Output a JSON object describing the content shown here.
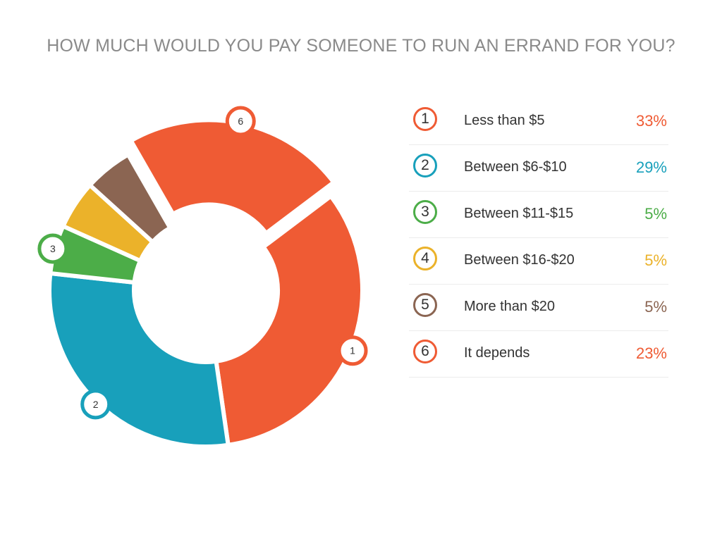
{
  "chart_data": {
    "type": "pie",
    "title": "HOW MUCH WOULD YOU PAY SOMEONE TO RUN AN ERRAND FOR YOU?",
    "categories": [
      "Less than $5",
      "Between $6-$10",
      "Between $11-$15",
      "Between $16-$20",
      "More than $20",
      "It depends"
    ],
    "markers": [
      "1",
      "2",
      "3",
      "4",
      "5",
      "6"
    ],
    "values": [
      33,
      29,
      5,
      5,
      5,
      23
    ],
    "value_labels": [
      "33%",
      "29%",
      "5%",
      "5%",
      "5%",
      "23%"
    ],
    "colors": [
      "#ef5b34",
      "#18a0bb",
      "#4cad48",
      "#ebb22a",
      "#8b6552",
      "#ef5b34"
    ],
    "callouts": [
      "1",
      "2",
      "3",
      "6"
    ],
    "legend_position": "right"
  }
}
